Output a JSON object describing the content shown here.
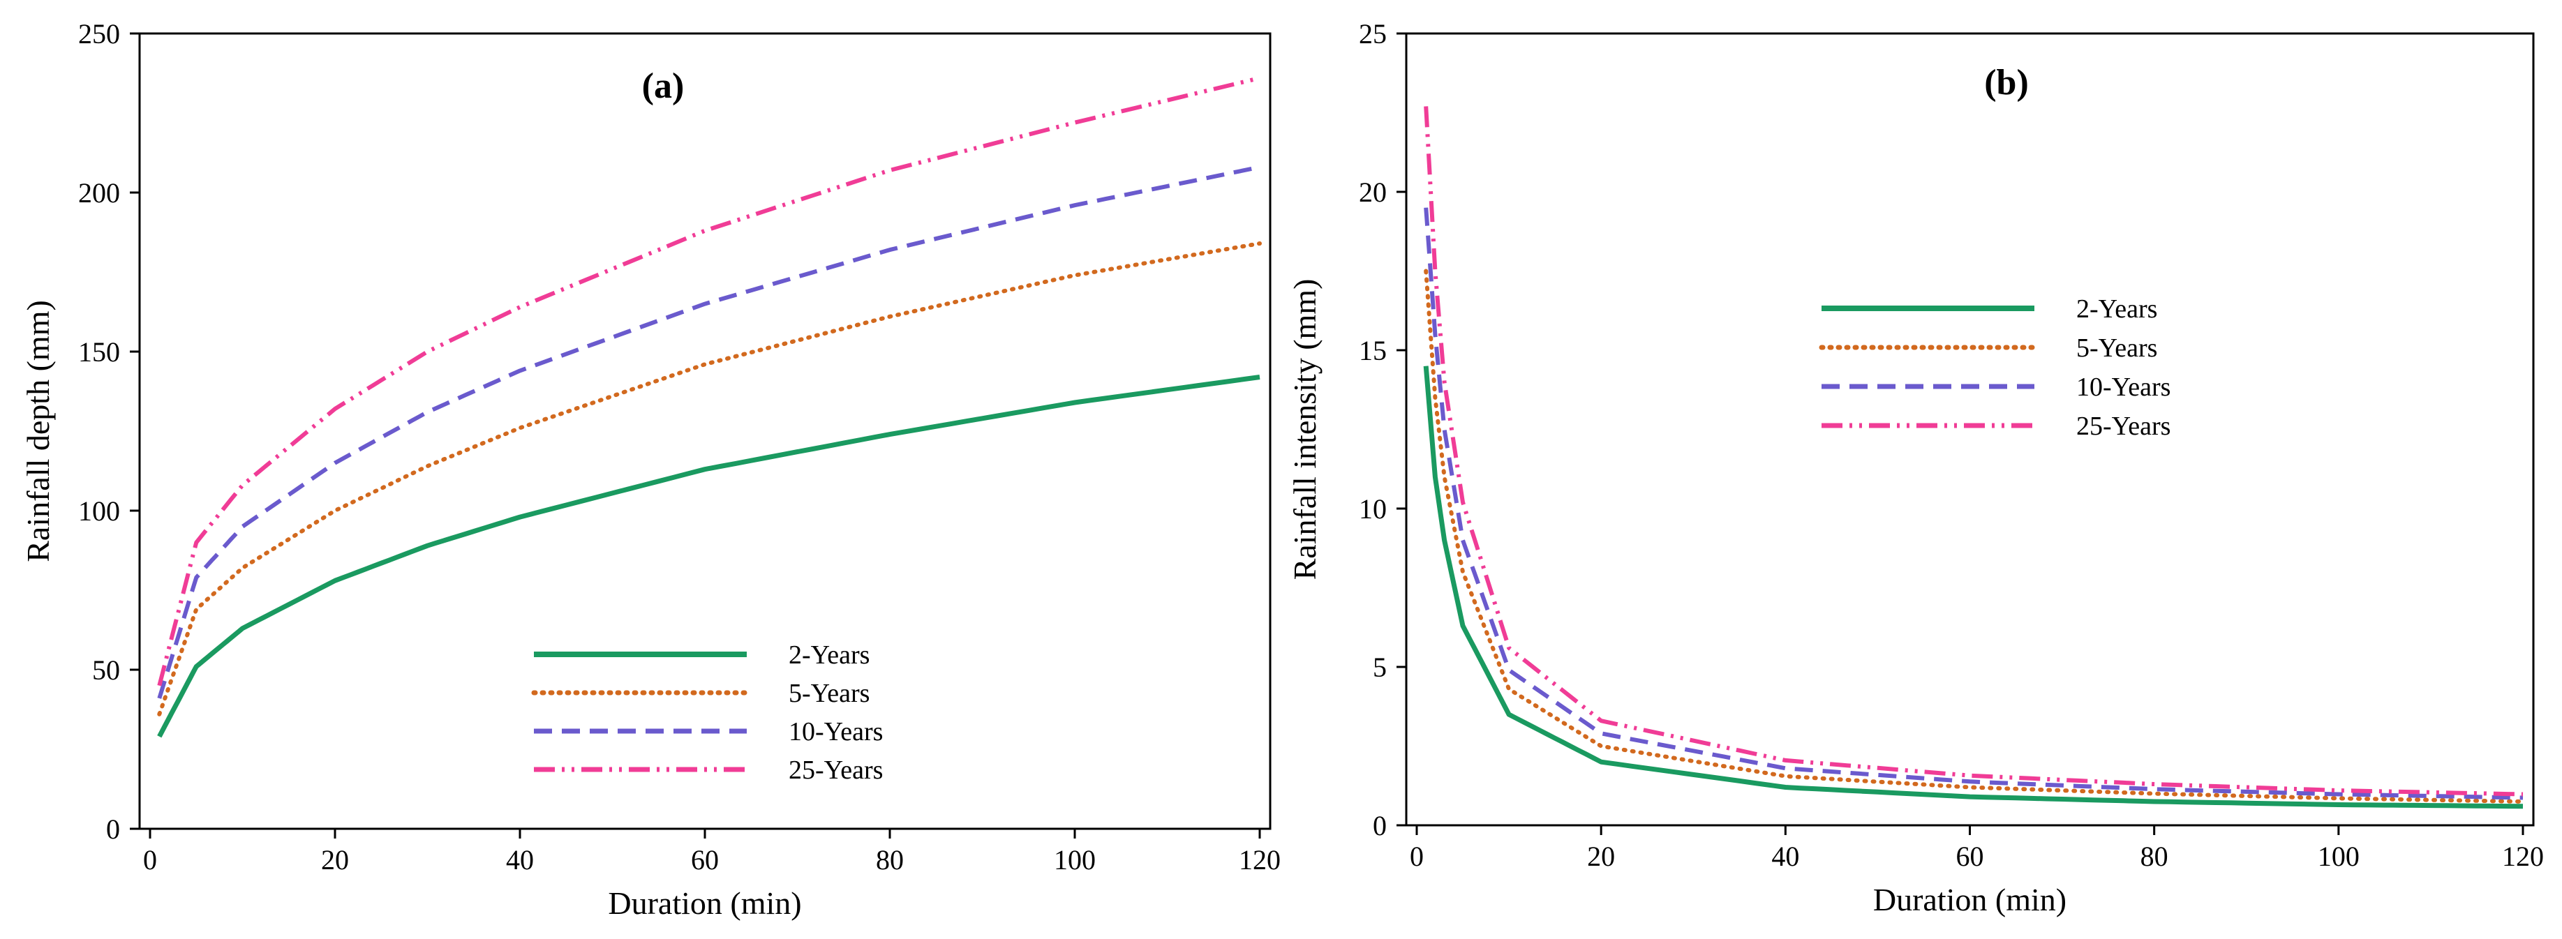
{
  "chart_data": [
    {
      "type": "line",
      "panel": "a",
      "title": "(a)",
      "xlabel": "Duration (min)",
      "ylabel": "Rainfall depth (mm)",
      "xlim": [
        0,
        120
      ],
      "ylim": [
        0,
        250
      ],
      "xticks": [
        0,
        20,
        40,
        60,
        80,
        100,
        120
      ],
      "yticks": [
        0,
        50,
        100,
        150,
        200,
        250
      ],
      "legend_position": "bottom-center",
      "series": [
        {
          "name": "2-Years",
          "color": "#1a9a60",
          "style": "solid",
          "x": [
            1,
            5,
            10,
            20,
            30,
            40,
            60,
            80,
            100,
            120
          ],
          "y": [
            29,
            51,
            63,
            78,
            89,
            98,
            113,
            124,
            134,
            142
          ]
        },
        {
          "name": "5-Years",
          "color": "#d2691e",
          "style": "dotted",
          "x": [
            1,
            5,
            10,
            20,
            30,
            40,
            60,
            80,
            100,
            120
          ],
          "y": [
            36,
            69,
            82,
            100,
            114,
            126,
            146,
            161,
            174,
            184
          ]
        },
        {
          "name": "10-Years",
          "color": "#6a5acd",
          "style": "dashed",
          "x": [
            1,
            5,
            10,
            20,
            30,
            40,
            60,
            80,
            100,
            120
          ],
          "y": [
            41,
            79,
            95,
            115,
            131,
            144,
            165,
            182,
            196,
            208
          ]
        },
        {
          "name": "25-Years",
          "color": "#f03c96",
          "style": "dashdotdot",
          "x": [
            1,
            5,
            10,
            20,
            30,
            40,
            60,
            80,
            100,
            120
          ],
          "y": [
            45,
            90,
            108,
            132,
            150,
            164,
            188,
            207,
            222,
            236
          ]
        }
      ]
    },
    {
      "type": "line",
      "panel": "b",
      "title": "(b)",
      "xlabel": "Duration (min)",
      "ylabel": "Rainfall intensity (mm)",
      "xlim": [
        0,
        120
      ],
      "ylim": [
        0,
        25
      ],
      "xticks": [
        0,
        20,
        40,
        60,
        80,
        100,
        120
      ],
      "yticks": [
        0,
        5,
        10,
        15,
        20,
        25
      ],
      "legend_position": "upper-center",
      "series": [
        {
          "name": "2-Years",
          "color": "#1a9a60",
          "style": "solid",
          "x": [
            1,
            2,
            3,
            5,
            10,
            20,
            40,
            60,
            80,
            100,
            120
          ],
          "y": [
            14.5,
            11.0,
            9.0,
            6.3,
            3.5,
            2.0,
            1.2,
            0.9,
            0.75,
            0.65,
            0.6
          ]
        },
        {
          "name": "5-Years",
          "color": "#d2691e",
          "style": "dotted",
          "x": [
            1,
            2,
            3,
            5,
            10,
            20,
            40,
            60,
            80,
            100,
            120
          ],
          "y": [
            17.5,
            13.5,
            11.0,
            8.0,
            4.3,
            2.5,
            1.55,
            1.2,
            1.0,
            0.85,
            0.75
          ]
        },
        {
          "name": "10-Years",
          "color": "#6a5acd",
          "style": "dashed",
          "x": [
            1,
            2,
            3,
            5,
            10,
            20,
            40,
            60,
            80,
            100,
            120
          ],
          "y": [
            19.5,
            15.5,
            12.5,
            9.0,
            4.9,
            2.9,
            1.8,
            1.38,
            1.14,
            0.98,
            0.87
          ]
        },
        {
          "name": "25-Years",
          "color": "#f03c96",
          "style": "dashdotdot",
          "x": [
            1,
            2,
            3,
            5,
            10,
            20,
            40,
            60,
            80,
            100,
            120
          ],
          "y": [
            22.7,
            17.5,
            14.0,
            10.2,
            5.6,
            3.3,
            2.05,
            1.57,
            1.3,
            1.1,
            0.98
          ]
        }
      ]
    }
  ]
}
